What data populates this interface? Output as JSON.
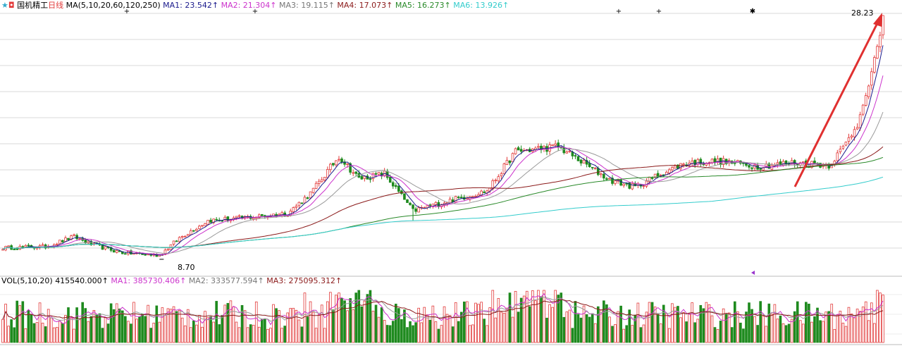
{
  "header": {
    "stock_name": "国机精工",
    "period": "日线",
    "ma_params": "MA(5,10,20,60,120,250)",
    "ma_values": [
      {
        "label": "MA1:",
        "value": "23.542↑",
        "color": "#1a1a8c"
      },
      {
        "label": "MA2:",
        "value": "21.304↑",
        "color": "#cc33cc"
      },
      {
        "label": "MA3:",
        "value": "19.115↑",
        "color": "#777777"
      },
      {
        "label": "MA4:",
        "value": "17.073↑",
        "color": "#8b1a1a"
      },
      {
        "label": "MA5:",
        "value": "16.273↑",
        "color": "#2a8a2a"
      },
      {
        "label": "MA6:",
        "value": "13.926↑",
        "color": "#33cccc"
      }
    ]
  },
  "price_annotations": {
    "high_label": "28.23",
    "low_label": "8.70"
  },
  "volume_header": {
    "params": "VOL(5,10,20)",
    "vol_value": "415540.000↑",
    "ma_values": [
      {
        "label": "MA1:",
        "value": "385730.406↑",
        "color": "#cc33cc"
      },
      {
        "label": "MA2:",
        "value": "333577.594↑",
        "color": "#777777"
      },
      {
        "label": "MA3:",
        "value": "275095.312↑",
        "color": "#8b1a1a"
      }
    ]
  },
  "colors": {
    "up": "#e23b3b",
    "down": "#1e8a1e",
    "grid": "#d8d8d8",
    "arrow": "#e03030"
  },
  "chart_data": {
    "type": "candlestick",
    "anchors": [
      {
        "i": 0,
        "p": 9.4
      },
      {
        "i": 15,
        "p": 9.5
      },
      {
        "i": 25,
        "p": 10.3
      },
      {
        "i": 32,
        "p": 9.6
      },
      {
        "i": 42,
        "p": 9.0
      },
      {
        "i": 55,
        "p": 8.8
      },
      {
        "i": 62,
        "p": 10.2
      },
      {
        "i": 72,
        "p": 11.6
      },
      {
        "i": 88,
        "p": 11.9
      },
      {
        "i": 100,
        "p": 12.2
      },
      {
        "i": 108,
        "p": 13.8
      },
      {
        "i": 118,
        "p": 16.8
      },
      {
        "i": 125,
        "p": 15.0
      },
      {
        "i": 134,
        "p": 15.4
      },
      {
        "i": 144,
        "p": 12.4
      },
      {
        "i": 158,
        "p": 13.3
      },
      {
        "i": 170,
        "p": 14.0
      },
      {
        "i": 180,
        "p": 17.2
      },
      {
        "i": 195,
        "p": 17.6
      },
      {
        "i": 203,
        "p": 16.4
      },
      {
        "i": 213,
        "p": 14.9
      },
      {
        "i": 222,
        "p": 14.3
      },
      {
        "i": 230,
        "p": 15.3
      },
      {
        "i": 240,
        "p": 16.3
      },
      {
        "i": 252,
        "p": 16.4
      },
      {
        "i": 265,
        "p": 16.0
      },
      {
        "i": 278,
        "p": 16.3
      },
      {
        "i": 290,
        "p": 16.1
      },
      {
        "i": 295,
        "p": 17.5
      },
      {
        "i": 300,
        "p": 19.4
      },
      {
        "i": 304,
        "p": 22.5
      },
      {
        "i": 306,
        "p": 24.8
      },
      {
        "i": 308,
        "p": 26.6
      },
      {
        "i": 309,
        "p": 28.2
      }
    ],
    "price_range": [
      7.5,
      28.6
    ],
    "high": 28.23,
    "low": 8.7,
    "bars": 310
  }
}
